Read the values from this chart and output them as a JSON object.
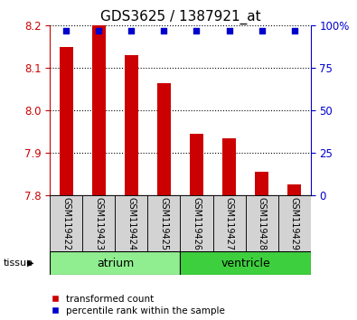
{
  "title": "GDS3625 / 1387921_at",
  "samples": [
    "GSM119422",
    "GSM119423",
    "GSM119424",
    "GSM119425",
    "GSM119426",
    "GSM119427",
    "GSM119428",
    "GSM119429"
  ],
  "transformed_count": [
    8.15,
    8.2,
    8.13,
    8.065,
    7.945,
    7.935,
    7.855,
    7.825
  ],
  "percentile_rank": [
    97,
    97,
    97,
    97,
    97,
    97,
    97,
    97
  ],
  "ylim_left": [
    7.8,
    8.2
  ],
  "ylim_right": [
    0,
    100
  ],
  "yticks_left": [
    7.8,
    7.9,
    8.0,
    8.1,
    8.2
  ],
  "yticks_right": [
    0,
    25,
    50,
    75,
    100
  ],
  "bar_color": "#cc0000",
  "dot_color": "#0000cc",
  "bar_bottom": 7.8,
  "bar_width": 0.4,
  "tissue_groups": [
    {
      "name": "atrium",
      "indices": [
        0,
        1,
        2,
        3
      ],
      "color": "#90ee90"
    },
    {
      "name": "ventricle",
      "indices": [
        4,
        5,
        6,
        7
      ],
      "color": "#3ecf3e"
    }
  ],
  "sample_box_color": "#d3d3d3",
  "tissue_label": "tissue",
  "legend_bar_label": "transformed count",
  "legend_dot_label": "percentile rank within the sample",
  "tick_color_left": "#cc0000",
  "tick_color_right": "#0000cc",
  "grid_linestyle": "dotted",
  "grid_linewidth": 0.8,
  "title_fontsize": 11,
  "tick_fontsize": 8.5,
  "sample_fontsize": 7,
  "tissue_fontsize": 9
}
